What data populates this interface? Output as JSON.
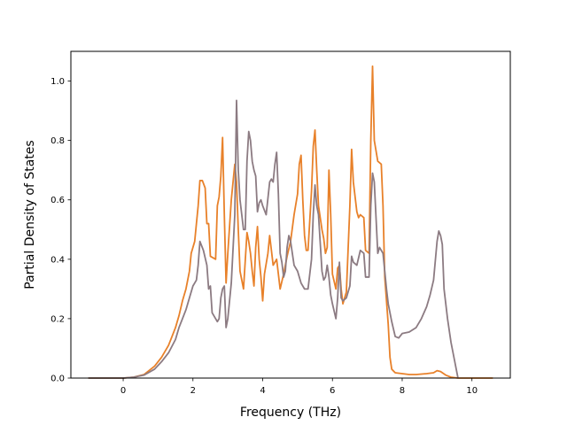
{
  "chart_data": {
    "type": "line",
    "title": "",
    "xlabel": "Frequency (THz)",
    "ylabel": "Partial Density of States",
    "xlim": [
      -1.5,
      11.1
    ],
    "ylim": [
      0.0,
      1.1
    ],
    "xticks": [
      0,
      2,
      4,
      6,
      8,
      10
    ],
    "yticks": [
      0.0,
      0.2,
      0.4,
      0.6,
      0.8,
      1.0
    ],
    "xtick_labels": [
      "0",
      "2",
      "4",
      "6",
      "8",
      "10"
    ],
    "ytick_labels": [
      "0.0",
      "0.2",
      "0.4",
      "0.6",
      "0.8",
      "1.0"
    ],
    "grid": false,
    "legend": "none",
    "series": [
      {
        "color": "#e8812a",
        "points": [
          [
            -1.0,
            0.0
          ],
          [
            0.0,
            0.0
          ],
          [
            0.3,
            0.003
          ],
          [
            0.6,
            0.012
          ],
          [
            0.9,
            0.04
          ],
          [
            1.1,
            0.07
          ],
          [
            1.3,
            0.11
          ],
          [
            1.5,
            0.17
          ],
          [
            1.6,
            0.21
          ],
          [
            1.7,
            0.26
          ],
          [
            1.8,
            0.3
          ],
          [
            1.9,
            0.36
          ],
          [
            1.95,
            0.42
          ],
          [
            2.05,
            0.46
          ],
          [
            2.1,
            0.52
          ],
          [
            2.15,
            0.58
          ],
          [
            2.2,
            0.665
          ],
          [
            2.27,
            0.665
          ],
          [
            2.35,
            0.64
          ],
          [
            2.4,
            0.52
          ],
          [
            2.45,
            0.52
          ],
          [
            2.5,
            0.41
          ],
          [
            2.65,
            0.4
          ],
          [
            2.7,
            0.58
          ],
          [
            2.75,
            0.61
          ],
          [
            2.8,
            0.68
          ],
          [
            2.85,
            0.81
          ],
          [
            2.9,
            0.55
          ],
          [
            2.95,
            0.32
          ],
          [
            3.0,
            0.42
          ],
          [
            3.1,
            0.6
          ],
          [
            3.2,
            0.72
          ],
          [
            3.25,
            0.66
          ],
          [
            3.3,
            0.5
          ],
          [
            3.35,
            0.36
          ],
          [
            3.45,
            0.3
          ],
          [
            3.55,
            0.49
          ],
          [
            3.6,
            0.46
          ],
          [
            3.65,
            0.42
          ],
          [
            3.7,
            0.36
          ],
          [
            3.75,
            0.31
          ],
          [
            3.8,
            0.44
          ],
          [
            3.85,
            0.51
          ],
          [
            3.9,
            0.4
          ],
          [
            3.95,
            0.34
          ],
          [
            4.0,
            0.26
          ],
          [
            4.05,
            0.35
          ],
          [
            4.15,
            0.42
          ],
          [
            4.2,
            0.48
          ],
          [
            4.3,
            0.38
          ],
          [
            4.4,
            0.4
          ],
          [
            4.5,
            0.3
          ],
          [
            4.6,
            0.35
          ],
          [
            4.7,
            0.41
          ],
          [
            4.8,
            0.46
          ],
          [
            4.9,
            0.55
          ],
          [
            5.0,
            0.62
          ],
          [
            5.05,
            0.72
          ],
          [
            5.1,
            0.75
          ],
          [
            5.15,
            0.6
          ],
          [
            5.2,
            0.48
          ],
          [
            5.25,
            0.43
          ],
          [
            5.3,
            0.43
          ],
          [
            5.4,
            0.63
          ],
          [
            5.45,
            0.78
          ],
          [
            5.5,
            0.835
          ],
          [
            5.55,
            0.7
          ],
          [
            5.6,
            0.58
          ],
          [
            5.7,
            0.5
          ],
          [
            5.75,
            0.47
          ],
          [
            5.8,
            0.42
          ],
          [
            5.85,
            0.44
          ],
          [
            5.9,
            0.7
          ],
          [
            5.95,
            0.55
          ],
          [
            6.0,
            0.35
          ],
          [
            6.1,
            0.3
          ],
          [
            6.15,
            0.37
          ],
          [
            6.2,
            0.38
          ],
          [
            6.25,
            0.3
          ],
          [
            6.3,
            0.25
          ],
          [
            6.4,
            0.29
          ],
          [
            6.5,
            0.58
          ],
          [
            6.55,
            0.77
          ],
          [
            6.6,
            0.66
          ],
          [
            6.7,
            0.56
          ],
          [
            6.75,
            0.54
          ],
          [
            6.8,
            0.55
          ],
          [
            6.9,
            0.54
          ],
          [
            6.95,
            0.43
          ],
          [
            7.05,
            0.42
          ],
          [
            7.1,
            0.8
          ],
          [
            7.15,
            1.05
          ],
          [
            7.2,
            0.8
          ],
          [
            7.3,
            0.73
          ],
          [
            7.4,
            0.72
          ],
          [
            7.45,
            0.58
          ],
          [
            7.5,
            0.34
          ],
          [
            7.6,
            0.18
          ],
          [
            7.65,
            0.07
          ],
          [
            7.7,
            0.03
          ],
          [
            7.8,
            0.018
          ],
          [
            8.0,
            0.015
          ],
          [
            8.2,
            0.012
          ],
          [
            8.4,
            0.012
          ],
          [
            8.7,
            0.015
          ],
          [
            8.9,
            0.018
          ],
          [
            9.0,
            0.025
          ],
          [
            9.1,
            0.022
          ],
          [
            9.25,
            0.01
          ],
          [
            9.4,
            0.003
          ],
          [
            9.6,
            0.0
          ],
          [
            10.6,
            0.0
          ]
        ]
      },
      {
        "color": "#8c7b82",
        "points": [
          [
            -1.0,
            0.0
          ],
          [
            0.0,
            0.0
          ],
          [
            0.3,
            0.003
          ],
          [
            0.6,
            0.01
          ],
          [
            0.9,
            0.03
          ],
          [
            1.1,
            0.055
          ],
          [
            1.3,
            0.085
          ],
          [
            1.5,
            0.13
          ],
          [
            1.6,
            0.17
          ],
          [
            1.7,
            0.2
          ],
          [
            1.8,
            0.23
          ],
          [
            1.9,
            0.27
          ],
          [
            2.0,
            0.31
          ],
          [
            2.05,
            0.32
          ],
          [
            2.1,
            0.33
          ],
          [
            2.15,
            0.38
          ],
          [
            2.2,
            0.46
          ],
          [
            2.3,
            0.43
          ],
          [
            2.4,
            0.38
          ],
          [
            2.45,
            0.3
          ],
          [
            2.5,
            0.31
          ],
          [
            2.55,
            0.22
          ],
          [
            2.65,
            0.2
          ],
          [
            2.7,
            0.19
          ],
          [
            2.75,
            0.2
          ],
          [
            2.8,
            0.27
          ],
          [
            2.85,
            0.3
          ],
          [
            2.9,
            0.31
          ],
          [
            2.95,
            0.17
          ],
          [
            3.0,
            0.2
          ],
          [
            3.1,
            0.32
          ],
          [
            3.2,
            0.55
          ],
          [
            3.25,
            0.935
          ],
          [
            3.3,
            0.7
          ],
          [
            3.35,
            0.6
          ],
          [
            3.45,
            0.5
          ],
          [
            3.5,
            0.5
          ],
          [
            3.55,
            0.73
          ],
          [
            3.6,
            0.83
          ],
          [
            3.65,
            0.8
          ],
          [
            3.7,
            0.73
          ],
          [
            3.75,
            0.7
          ],
          [
            3.8,
            0.68
          ],
          [
            3.85,
            0.56
          ],
          [
            3.9,
            0.59
          ],
          [
            3.95,
            0.6
          ],
          [
            4.0,
            0.58
          ],
          [
            4.1,
            0.55
          ],
          [
            4.2,
            0.66
          ],
          [
            4.25,
            0.67
          ],
          [
            4.3,
            0.66
          ],
          [
            4.35,
            0.72
          ],
          [
            4.4,
            0.76
          ],
          [
            4.45,
            0.62
          ],
          [
            4.5,
            0.42
          ],
          [
            4.55,
            0.39
          ],
          [
            4.6,
            0.34
          ],
          [
            4.65,
            0.36
          ],
          [
            4.7,
            0.44
          ],
          [
            4.75,
            0.48
          ],
          [
            4.8,
            0.46
          ],
          [
            4.9,
            0.38
          ],
          [
            5.0,
            0.36
          ],
          [
            5.1,
            0.32
          ],
          [
            5.2,
            0.3
          ],
          [
            5.3,
            0.3
          ],
          [
            5.4,
            0.4
          ],
          [
            5.45,
            0.55
          ],
          [
            5.5,
            0.65
          ],
          [
            5.55,
            0.58
          ],
          [
            5.6,
            0.55
          ],
          [
            5.7,
            0.36
          ],
          [
            5.75,
            0.33
          ],
          [
            5.8,
            0.34
          ],
          [
            5.85,
            0.38
          ],
          [
            5.9,
            0.34
          ],
          [
            5.95,
            0.28
          ],
          [
            6.0,
            0.25
          ],
          [
            6.1,
            0.2
          ],
          [
            6.15,
            0.27
          ],
          [
            6.2,
            0.39
          ],
          [
            6.25,
            0.27
          ],
          [
            6.3,
            0.26
          ],
          [
            6.4,
            0.27
          ],
          [
            6.5,
            0.31
          ],
          [
            6.55,
            0.41
          ],
          [
            6.6,
            0.39
          ],
          [
            6.7,
            0.38
          ],
          [
            6.8,
            0.43
          ],
          [
            6.9,
            0.42
          ],
          [
            6.95,
            0.34
          ],
          [
            7.05,
            0.34
          ],
          [
            7.1,
            0.58
          ],
          [
            7.15,
            0.69
          ],
          [
            7.2,
            0.66
          ],
          [
            7.3,
            0.42
          ],
          [
            7.35,
            0.44
          ],
          [
            7.45,
            0.42
          ],
          [
            7.55,
            0.3
          ],
          [
            7.6,
            0.25
          ],
          [
            7.7,
            0.19
          ],
          [
            7.8,
            0.14
          ],
          [
            7.9,
            0.135
          ],
          [
            8.0,
            0.15
          ],
          [
            8.2,
            0.155
          ],
          [
            8.4,
            0.17
          ],
          [
            8.55,
            0.2
          ],
          [
            8.7,
            0.24
          ],
          [
            8.8,
            0.28
          ],
          [
            8.9,
            0.33
          ],
          [
            9.0,
            0.46
          ],
          [
            9.05,
            0.495
          ],
          [
            9.1,
            0.48
          ],
          [
            9.15,
            0.45
          ],
          [
            9.2,
            0.3
          ],
          [
            9.3,
            0.2
          ],
          [
            9.4,
            0.12
          ],
          [
            9.5,
            0.06
          ],
          [
            9.55,
            0.03
          ],
          [
            9.6,
            0.0
          ]
        ]
      }
    ]
  }
}
